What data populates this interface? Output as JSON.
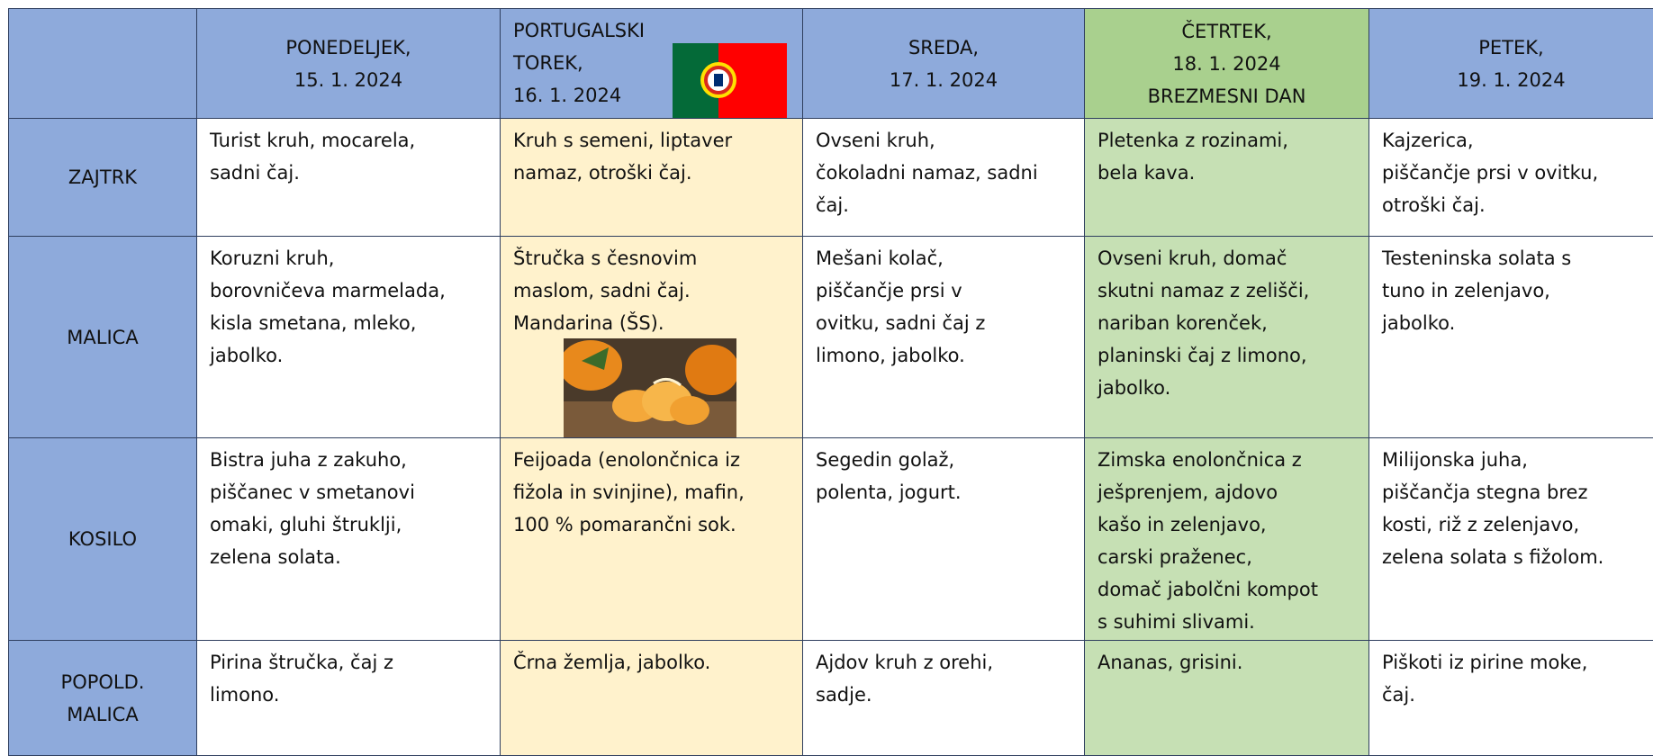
{
  "header": {
    "days": [
      [
        "PONEDELJEK,",
        "15. 1. 2024"
      ],
      [
        "PORTUGALSKI",
        "TOREK,",
        "16. 1. 2024"
      ],
      [
        "SREDA,",
        "17. 1. 2024"
      ],
      [
        "ČETRTEK,",
        "18. 1. 2024",
        "BREZMESNI DAN"
      ],
      [
        "PETEK,",
        "19. 1. 2024"
      ]
    ]
  },
  "rows": [
    {
      "label": [
        "ZAJTRK"
      ],
      "cells": [
        [
          "Turist kruh, mocarela,",
          "sadni čaj."
        ],
        [
          "Kruh s semeni, liptaver",
          "namaz, otroški čaj."
        ],
        [
          "Ovseni kruh,",
          "čokoladni namaz, sadni",
          "čaj."
        ],
        [
          "Pletenka z rozinami,",
          "bela kava."
        ],
        [
          "Kajzerica,",
          "piščančje prsi v ovitku,",
          "otroški čaj."
        ]
      ]
    },
    {
      "label": [
        "MALICA"
      ],
      "cells": [
        [
          "Koruzni kruh,",
          "borovničeva marmelada,",
          "kisla smetana, mleko,",
          "jabolko."
        ],
        [
          "Štručka s česnovim",
          "maslom, sadni čaj.",
          "Mandarina (ŠS)."
        ],
        [
          "Mešani kolač,",
          "piščančje prsi v",
          "ovitku, sadni čaj z",
          "limono, jabolko."
        ],
        [
          "Ovseni kruh, domač",
          "skutni namaz z zelišči,",
          "nariban korenček,",
          "planinski čaj z limono,",
          "jabolko."
        ],
        [
          "Testeninska solata s",
          "tuno in zelenjavo,",
          "jabolko."
        ]
      ]
    },
    {
      "label": [
        "KOSILO"
      ],
      "cells": [
        [
          "Bistra juha z zakuho,",
          "piščanec v smetanovi",
          "omaki, gluhi štruklji,",
          "zelena solata."
        ],
        [
          "Feijoada (enolončnica iz",
          "fižola in svinjine), mafin,",
          "100 % pomarančni sok."
        ],
        [
          "Segedin golaž,",
          "polenta, jogurt."
        ],
        [
          "Zimska enolončnica z",
          "ješprenjem, ajdovo",
          "kašo in zelenjavo,",
          "carski praženec,",
          "domač jabolčni kompot",
          "s suhimi slivami."
        ],
        [
          "Milijonska juha,",
          "piščančja stegna brez",
          "kosti, riž z zelenjavo,",
          "zelena solata s fižolom."
        ]
      ]
    },
    {
      "label": [
        "POPOLD.",
        "MALICA"
      ],
      "cells": [
        [
          "Pirina štručka, čaj z",
          "limono."
        ],
        [
          "Črna žemlja, jabolko."
        ],
        [
          "Ajdov kruh z orehi,",
          "sadje."
        ],
        [
          "Ananas, grisini."
        ],
        [
          "Piškoti iz pirine moke,",
          "čaj."
        ]
      ]
    }
  ]
}
